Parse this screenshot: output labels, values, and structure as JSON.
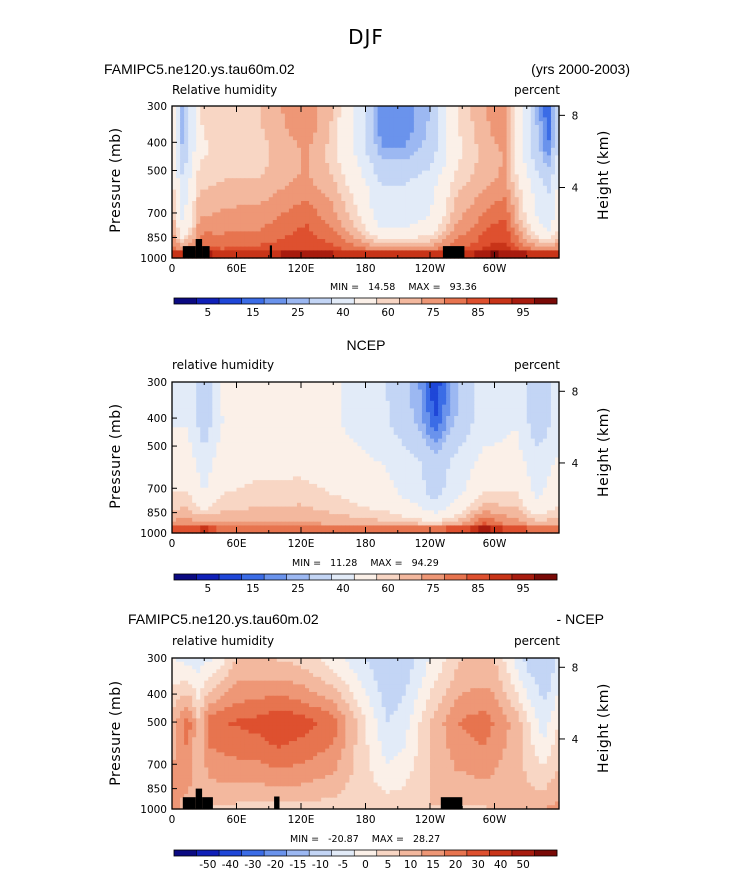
{
  "figure": {
    "title": "DJF"
  },
  "colors": {
    "absolute_scale": [
      "#0b0a82",
      "#1020b8",
      "#1f47d8",
      "#3b6ce6",
      "#6a93ec",
      "#9cb8f2",
      "#c3d5f5",
      "#e2ebf8",
      "#fbf0e8",
      "#f8d6c4",
      "#f3b89e",
      "#ee9776",
      "#e7744f",
      "#de502f",
      "#c83418",
      "#a81c0f",
      "#7a0a07"
    ],
    "difference_scale": [
      "#0b0a82",
      "#1020b8",
      "#1f47d8",
      "#3b6ce6",
      "#6a93ec",
      "#9cb8f2",
      "#c3d5f5",
      "#e2ebf8",
      "#fbf0e8",
      "#f8d6c4",
      "#f3b89e",
      "#ee9776",
      "#e7744f",
      "#de502f",
      "#c83418",
      "#a81c0f",
      "#7a0a07"
    ],
    "topography": "#000000"
  },
  "chart_data": [
    {
      "type": "heatmap",
      "id": "model",
      "title": "FAMIPC5.ne120.ys.tau60m.02",
      "title_right": "(yrs 2000-2003)",
      "variable_label": "Relative humidity",
      "units_label": "percent",
      "xlabel": "",
      "ylabel": "Pressure (mb)",
      "ylabel_right": "Height (km)",
      "x_ticks": [
        "0",
        "60E",
        "120E",
        "180",
        "120W",
        "60W"
      ],
      "x_tick_values": [
        0,
        60,
        120,
        180,
        240,
        300
      ],
      "xlim": [
        0,
        360
      ],
      "y_ticks": [
        "300",
        "400",
        "500",
        "700",
        "850",
        "1000"
      ],
      "y_tick_values": [
        300,
        400,
        500,
        700,
        850,
        1000
      ],
      "ylim": [
        1000,
        300
      ],
      "y_scale": "log",
      "height_ticks": [
        "8",
        "4"
      ],
      "height_tick_values": [
        8,
        4
      ],
      "stats": {
        "min_label": "MIN =",
        "min": "14.58",
        "max_label": "MAX =",
        "max": "93.36"
      },
      "colorbar_labels": [
        "5",
        "15",
        "25",
        "40",
        "60",
        "75",
        "85",
        "95"
      ],
      "colorbar_label_boundaries": [
        2,
        4,
        6,
        8,
        10,
        12,
        14,
        16
      ],
      "fields": {
        "base": [
          [
            60,
            45
          ],
          [
            85,
            55
          ],
          [
            110,
            60
          ],
          [
            140,
            65
          ],
          [
            180,
            70
          ],
          [
            230,
            75
          ],
          [
            270,
            80
          ],
          [
            300,
            82
          ],
          [
            330,
            84
          ],
          [
            360,
            85
          ]
        ],
        "lat_warm": [
          [
            5,
            82
          ],
          [
            20,
            84
          ],
          [
            30,
            88
          ],
          [
            45,
            84
          ],
          [
            60,
            85
          ],
          [
            100,
            86
          ],
          [
            120,
            88
          ],
          [
            150,
            86
          ],
          [
            190,
            84
          ],
          [
            240,
            84
          ],
          [
            280,
            86
          ],
          [
            300,
            92
          ],
          [
            330,
            86
          ],
          [
            360,
            84
          ]
        ],
        "upper": [
          [
            0,
            60
          ],
          [
            10,
            25
          ],
          [
            25,
            60
          ],
          [
            50,
            65
          ],
          [
            80,
            65
          ],
          [
            100,
            70
          ],
          [
            125,
            75
          ],
          [
            150,
            65
          ],
          [
            175,
            45
          ],
          [
            195,
            20
          ],
          [
            215,
            20
          ],
          [
            240,
            30
          ],
          [
            265,
            60
          ],
          [
            290,
            70
          ],
          [
            310,
            75
          ],
          [
            335,
            35
          ],
          [
            350,
            15
          ],
          [
            360,
            40
          ]
        ]
      },
      "topography": [
        [
          10,
          22,
          910,
          1000
        ],
        [
          22,
          28,
          860,
          1000
        ],
        [
          28,
          35,
          910,
          1000
        ],
        [
          91,
          93,
          905,
          1000
        ],
        [
          252,
          272,
          910,
          1000
        ]
      ]
    },
    {
      "type": "heatmap",
      "id": "obs",
      "title": "NCEP",
      "title_right": "",
      "variable_label": "relative humidity",
      "units_label": "percent",
      "xlabel": "",
      "ylabel": "Pressure (mb)",
      "ylabel_right": "Height (km)",
      "x_ticks": [
        "0",
        "60E",
        "120E",
        "180",
        "120W",
        "60W"
      ],
      "x_tick_values": [
        0,
        60,
        120,
        180,
        240,
        300
      ],
      "xlim": [
        0,
        360
      ],
      "y_ticks": [
        "300",
        "400",
        "500",
        "700",
        "850",
        "1000"
      ],
      "y_tick_values": [
        300,
        400,
        500,
        700,
        850,
        1000
      ],
      "ylim": [
        1000,
        300
      ],
      "y_scale": "log",
      "height_ticks": [
        "8",
        "4"
      ],
      "height_tick_values": [
        8,
        4
      ],
      "stats": {
        "min_label": "MIN =",
        "min": "11.28",
        "max_label": "MAX =",
        "max": "94.29"
      },
      "colorbar_labels": [
        "5",
        "15",
        "25",
        "40",
        "60",
        "75",
        "85",
        "95"
      ],
      "colorbar_label_boundaries": [
        2,
        4,
        6,
        8,
        10,
        12,
        14,
        16
      ],
      "fields": {
        "base": [
          [
            60,
            45
          ],
          [
            85,
            50
          ],
          [
            110,
            55
          ],
          [
            140,
            58
          ],
          [
            180,
            62
          ],
          [
            230,
            68
          ],
          [
            270,
            74
          ],
          [
            300,
            78
          ],
          [
            330,
            80
          ],
          [
            360,
            82
          ]
        ],
        "lat_warm": [
          [
            5,
            78
          ],
          [
            20,
            80
          ],
          [
            30,
            84
          ],
          [
            45,
            76
          ],
          [
            60,
            75
          ],
          [
            100,
            75
          ],
          [
            120,
            76
          ],
          [
            150,
            74
          ],
          [
            190,
            74
          ],
          [
            240,
            76
          ],
          [
            270,
            80
          ],
          [
            290,
            90
          ],
          [
            310,
            82
          ],
          [
            330,
            78
          ],
          [
            360,
            76
          ]
        ],
        "upper": [
          [
            0,
            50
          ],
          [
            15,
            50
          ],
          [
            30,
            30
          ],
          [
            45,
            50
          ],
          [
            80,
            55
          ],
          [
            120,
            55
          ],
          [
            160,
            50
          ],
          [
            200,
            40
          ],
          [
            230,
            25
          ],
          [
            245,
            10
          ],
          [
            260,
            25
          ],
          [
            290,
            45
          ],
          [
            320,
            50
          ],
          [
            340,
            30
          ],
          [
            360,
            45
          ]
        ]
      },
      "topography": []
    },
    {
      "type": "heatmap",
      "id": "difference",
      "title": "FAMIPC5.ne120.ys.tau60m.02",
      "title_right": "- NCEP",
      "variable_label": "relative humidity",
      "units_label": "percent",
      "xlabel": "",
      "ylabel": "Pressure (mb)",
      "ylabel_right": "Height (km)",
      "x_ticks": [
        "0",
        "60E",
        "120E",
        "180",
        "120W",
        "60W"
      ],
      "x_tick_values": [
        0,
        60,
        120,
        180,
        240,
        300
      ],
      "xlim": [
        0,
        360
      ],
      "y_ticks": [
        "300",
        "400",
        "500",
        "700",
        "850",
        "1000"
      ],
      "y_tick_values": [
        300,
        400,
        500,
        700,
        850,
        1000
      ],
      "ylim": [
        1000,
        300
      ],
      "y_scale": "log",
      "height_ticks": [
        "8",
        "4"
      ],
      "height_tick_values": [
        8,
        4
      ],
      "stats": {
        "min_label": "MIN =",
        "min": "-20.87",
        "max_label": "MAX =",
        "max": "28.27"
      },
      "colorbar_labels": [
        "-50",
        "-40",
        "-30",
        "-20",
        "-15",
        "-10",
        "-5",
        "0",
        "5",
        "10",
        "15",
        "20",
        "30",
        "40",
        "50"
      ],
      "colorbar_label_boundaries": [
        1,
        2,
        3,
        4,
        5,
        6,
        7,
        8,
        9,
        10,
        11,
        12,
        13,
        14,
        15
      ],
      "fields": {
        "mid": [
          [
            0,
            8
          ],
          [
            15,
            18
          ],
          [
            25,
            5
          ],
          [
            35,
            18
          ],
          [
            50,
            20
          ],
          [
            80,
            22
          ],
          [
            100,
            25
          ],
          [
            125,
            22
          ],
          [
            150,
            18
          ],
          [
            175,
            3
          ],
          [
            200,
            -10
          ],
          [
            215,
            -8
          ],
          [
            240,
            5
          ],
          [
            265,
            15
          ],
          [
            290,
            18
          ],
          [
            320,
            8
          ],
          [
            345,
            -8
          ],
          [
            360,
            0
          ]
        ],
        "upper": [
          [
            0,
            -5
          ],
          [
            20,
            -8
          ],
          [
            40,
            -5
          ],
          [
            60,
            5
          ],
          [
            90,
            5
          ],
          [
            120,
            3
          ],
          [
            150,
            -3
          ],
          [
            180,
            -10
          ],
          [
            200,
            -15
          ],
          [
            220,
            -12
          ],
          [
            240,
            -5
          ],
          [
            270,
            5
          ],
          [
            300,
            5
          ],
          [
            330,
            -12
          ],
          [
            350,
            -15
          ],
          [
            360,
            -8
          ]
        ],
        "low": [
          [
            0,
            12
          ],
          [
            20,
            6
          ],
          [
            40,
            4
          ],
          [
            80,
            3
          ],
          [
            120,
            3
          ],
          [
            160,
            2
          ],
          [
            200,
            3
          ],
          [
            240,
            5
          ],
          [
            280,
            4
          ],
          [
            320,
            6
          ],
          [
            345,
            10
          ],
          [
            360,
            12
          ]
        ]
      },
      "topography": [
        [
          10,
          22,
          910,
          1000
        ],
        [
          22,
          28,
          850,
          1000
        ],
        [
          28,
          38,
          910,
          1000
        ],
        [
          95,
          100,
          905,
          1000
        ],
        [
          250,
          270,
          910,
          1000
        ]
      ]
    }
  ]
}
